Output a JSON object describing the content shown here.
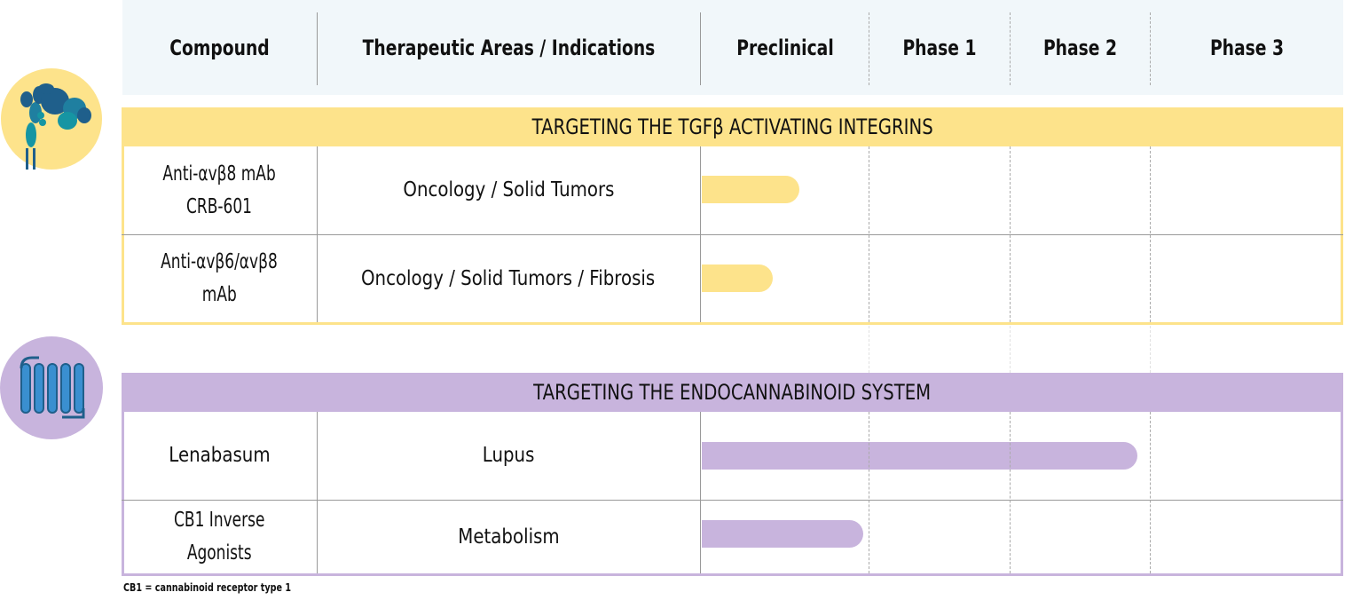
{
  "header": {
    "compound": "Compound",
    "areas": "Therapeutic Areas / Indications",
    "stages": [
      "Preclinical",
      "Phase 1",
      "Phase 2",
      "Phase 3"
    ]
  },
  "colors": {
    "integrin_band": "#fde38b",
    "integrin_bar": "#fde38b",
    "integrin_border": "#fde38b",
    "ecs_band": "#c8b4dd",
    "ecs_bar": "#c8b4dd",
    "ecs_border": "#c8b4dd",
    "header_bg": "#f1f7fa",
    "icon_teal": "#1695a3",
    "icon_blue": "#1f5f8b"
  },
  "icons": {
    "integrin": "integrin-protein-icon",
    "receptor": "gpcr-receptor-icon"
  },
  "chart_data": {
    "type": "pipeline",
    "stages": [
      "Preclinical",
      "Phase 1",
      "Phase 2",
      "Phase 3"
    ],
    "sections": [
      {
        "title": "TARGETING THE TGFβ ACTIVATING INTEGRINS",
        "rows": [
          {
            "compound": [
              "Anti-αvβ8 mAb",
              "CRB-601"
            ],
            "indication": "Oncology / Solid Tumors",
            "progress_stages": 0.59
          },
          {
            "compound": [
              "Anti-αvβ6/αvβ8",
              "mAb"
            ],
            "indication": "Oncology / Solid Tumors  / Fibrosis",
            "progress_stages": 0.43
          }
        ]
      },
      {
        "title": "TARGETING THE ENDOCANNABINOID SYSTEM",
        "rows": [
          {
            "compound": [
              "Lenabasum"
            ],
            "indication": "Lupus",
            "progress_stages": 2.91
          },
          {
            "compound": [
              "CB1 Inverse",
              "Agonists"
            ],
            "indication": "Metabolism",
            "progress_stages": 0.97
          }
        ]
      }
    ]
  },
  "footnote": "CB1 = cannabinoid receptor type 1"
}
